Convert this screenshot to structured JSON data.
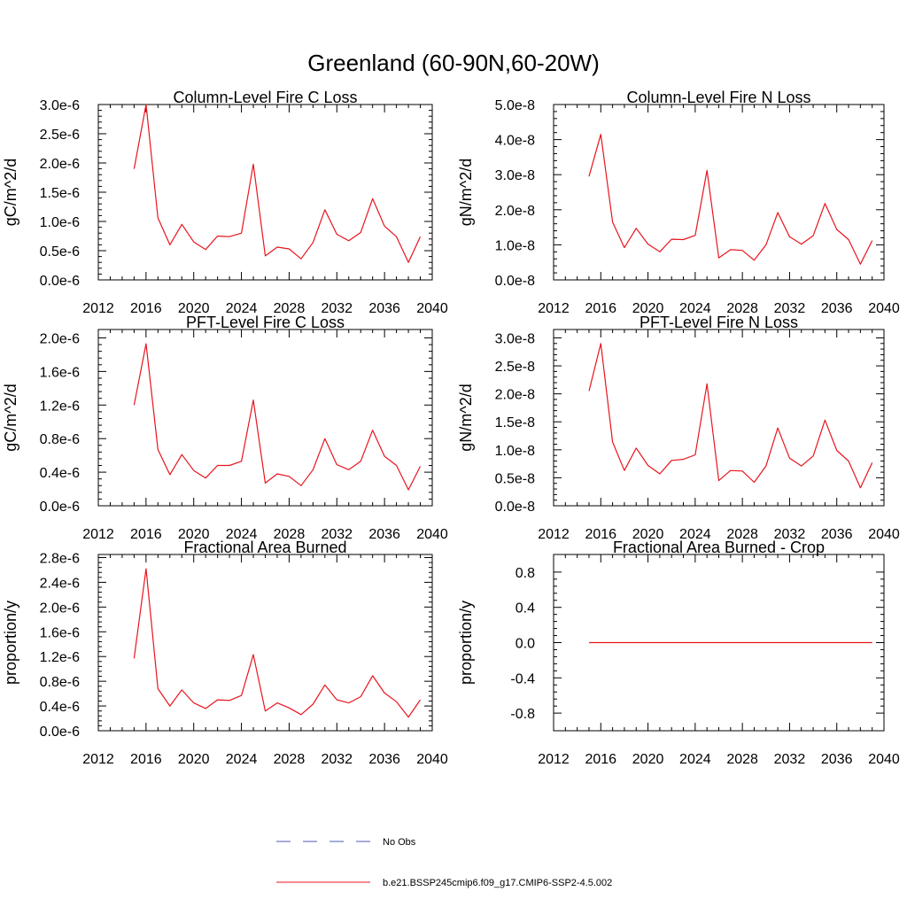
{
  "figure": {
    "title": "Greenland (60-90N,60-20W)"
  },
  "legend": [
    {
      "label": "No Obs",
      "color": "#4f5ab2",
      "style": "dashed"
    },
    {
      "label": "b.e21.BSSP245cmip6.f09_g17.CMIP6-SSP2-4.5.002",
      "color": "#e8141e",
      "style": "solid"
    }
  ],
  "chart_data": [
    {
      "type": "line",
      "title": "Column-Level Fire C Loss",
      "ylabel": "gC/m^2/d",
      "xlim": [
        2012,
        2040
      ],
      "xticks": [
        2012,
        2016,
        2020,
        2024,
        2028,
        2032,
        2036,
        2040
      ],
      "ylim": [
        0,
        3e-06
      ],
      "yticks": [
        0,
        5e-07,
        1e-06,
        1.5e-06,
        2e-06,
        2.5e-06,
        3e-06
      ],
      "ytick_labels": [
        "0.0e-6",
        "0.5e-6",
        "1.0e-6",
        "1.5e-6",
        "2.0e-6",
        "2.5e-6",
        "3.0e-6"
      ],
      "x": [
        2015,
        2016,
        2017,
        2018,
        2019,
        2020,
        2021,
        2022,
        2023,
        2024,
        2025,
        2026,
        2027,
        2028,
        2029,
        2030,
        2031,
        2032,
        2033,
        2034,
        2035,
        2036,
        2037,
        2038,
        2039
      ],
      "series": [
        {
          "name": "b.e21.BSSP245cmip6.f09_g17.CMIP6-SSP2-4.5.002",
          "color": "#e8141e",
          "values": [
            1.9e-06,
            3e-06,
            1.06e-06,
            6e-07,
            9.5e-07,
            6.5e-07,
            5.2e-07,
            7.5e-07,
            7.4e-07,
            8e-07,
            1.98e-06,
            4.1e-07,
            5.6e-07,
            5.3e-07,
            3.6e-07,
            6.4e-07,
            1.2e-06,
            7.8e-07,
            6.7e-07,
            8.1e-07,
            1.39e-06,
            9.2e-07,
            7.4e-07,
            3e-07,
            7.4e-07
          ]
        }
      ]
    },
    {
      "type": "line",
      "title": "Column-Level Fire N Loss",
      "ylabel": "gN/m^2/d",
      "xlim": [
        2012,
        2040
      ],
      "xticks": [
        2012,
        2016,
        2020,
        2024,
        2028,
        2032,
        2036,
        2040
      ],
      "ylim": [
        0,
        5e-08
      ],
      "yticks": [
        0,
        1e-08,
        2e-08,
        3e-08,
        4e-08,
        5e-08
      ],
      "ytick_labels": [
        "0.0e-8",
        "1.0e-8",
        "2.0e-8",
        "3.0e-8",
        "4.0e-8",
        "5.0e-8"
      ],
      "x": [
        2015,
        2016,
        2017,
        2018,
        2019,
        2020,
        2021,
        2022,
        2023,
        2024,
        2025,
        2026,
        2027,
        2028,
        2029,
        2030,
        2031,
        2032,
        2033,
        2034,
        2035,
        2036,
        2037,
        2038,
        2039
      ],
      "series": [
        {
          "name": "b.e21.BSSP245cmip6.f09_g17.CMIP6-SSP2-4.5.002",
          "color": "#e8141e",
          "values": [
            2.95e-08,
            4.15e-08,
            1.65e-08,
            9.2e-09,
            1.47e-08,
            1.02e-08,
            8e-09,
            1.16e-08,
            1.15e-08,
            1.27e-08,
            3.12e-08,
            6.3e-09,
            8.6e-09,
            8.4e-09,
            5.6e-09,
            1e-08,
            1.92e-08,
            1.23e-08,
            1.02e-08,
            1.26e-08,
            2.18e-08,
            1.44e-08,
            1.15e-08,
            4.5e-09,
            1.12e-08
          ]
        }
      ]
    },
    {
      "type": "line",
      "title": "PFT-Level Fire C Loss",
      "ylabel": "gC/m^2/d",
      "xlim": [
        2012,
        2040
      ],
      "xticks": [
        2012,
        2016,
        2020,
        2024,
        2028,
        2032,
        2036,
        2040
      ],
      "ylim": [
        0,
        2.1e-06
      ],
      "yticks": [
        0,
        4e-07,
        8e-07,
        1.2e-06,
        1.6e-06,
        2e-06
      ],
      "ytick_labels": [
        "0.0e-6",
        "0.4e-6",
        "0.8e-6",
        "1.2e-6",
        "1.6e-6",
        "2.0e-6"
      ],
      "x": [
        2015,
        2016,
        2017,
        2018,
        2019,
        2020,
        2021,
        2022,
        2023,
        2024,
        2025,
        2026,
        2027,
        2028,
        2029,
        2030,
        2031,
        2032,
        2033,
        2034,
        2035,
        2036,
        2037,
        2038,
        2039
      ],
      "series": [
        {
          "name": "b.e21.BSSP245cmip6.f09_g17.CMIP6-SSP2-4.5.002",
          "color": "#e8141e",
          "values": [
            1.2e-06,
            1.93e-06,
            6.7e-07,
            3.7e-07,
            6.1e-07,
            4.2e-07,
            3.3e-07,
            4.8e-07,
            4.8e-07,
            5.3e-07,
            1.26e-06,
            2.7e-07,
            3.8e-07,
            3.5e-07,
            2.4e-07,
            4.3e-07,
            8e-07,
            4.9e-07,
            4.3e-07,
            5.3e-07,
            9e-07,
            5.9e-07,
            4.8e-07,
            1.9e-07,
            4.7e-07
          ]
        }
      ]
    },
    {
      "type": "line",
      "title": "PFT-Level Fire N Loss",
      "ylabel": "gN/m^2/d",
      "xlim": [
        2012,
        2040
      ],
      "xticks": [
        2012,
        2016,
        2020,
        2024,
        2028,
        2032,
        2036,
        2040
      ],
      "ylim": [
        0,
        3.15e-08
      ],
      "yticks": [
        0,
        5e-09,
        1e-08,
        1.5e-08,
        2e-08,
        2.5e-08,
        3e-08
      ],
      "ytick_labels": [
        "0.0e-8",
        "0.5e-8",
        "1.0e-8",
        "1.5e-8",
        "2.0e-8",
        "2.5e-8",
        "3.0e-8"
      ],
      "x": [
        2015,
        2016,
        2017,
        2018,
        2019,
        2020,
        2021,
        2022,
        2023,
        2024,
        2025,
        2026,
        2027,
        2028,
        2029,
        2030,
        2031,
        2032,
        2033,
        2034,
        2035,
        2036,
        2037,
        2038,
        2039
      ],
      "series": [
        {
          "name": "b.e21.BSSP245cmip6.f09_g17.CMIP6-SSP2-4.5.002",
          "color": "#e8141e",
          "values": [
            2.05e-08,
            2.9e-08,
            1.14e-08,
            6.3e-09,
            1.03e-08,
            7.2e-09,
            5.7e-09,
            8.1e-09,
            8.3e-09,
            9.1e-09,
            2.18e-08,
            4.5e-09,
            6.3e-09,
            6.2e-09,
            4.2e-09,
            7.1e-09,
            1.39e-08,
            8.5e-09,
            7.1e-09,
            8.9e-09,
            1.53e-08,
            9.9e-09,
            8e-09,
            3.2e-09,
            7.7e-09
          ]
        }
      ]
    },
    {
      "type": "line",
      "title": "Fractional Area Burned",
      "ylabel": "proportion/y",
      "xlim": [
        2012,
        2040
      ],
      "xticks": [
        2012,
        2016,
        2020,
        2024,
        2028,
        2032,
        2036,
        2040
      ],
      "ylim": [
        0,
        2.85e-06
      ],
      "yticks": [
        0,
        4e-07,
        8e-07,
        1.2e-06,
        1.6e-06,
        2e-06,
        2.4e-06,
        2.8e-06
      ],
      "ytick_labels": [
        "0.0e-6",
        "0.4e-6",
        "0.8e-6",
        "1.2e-6",
        "1.6e-6",
        "2.0e-6",
        "2.4e-6",
        "2.8e-6"
      ],
      "x": [
        2015,
        2016,
        2017,
        2018,
        2019,
        2020,
        2021,
        2022,
        2023,
        2024,
        2025,
        2026,
        2027,
        2028,
        2029,
        2030,
        2031,
        2032,
        2033,
        2034,
        2035,
        2036,
        2037,
        2038,
        2039
      ],
      "series": [
        {
          "name": "b.e21.BSSP245cmip6.f09_g17.CMIP6-SSP2-4.5.002",
          "color": "#e8141e",
          "values": [
            1.17e-06,
            2.62e-06,
            6.8e-07,
            4e-07,
            6.6e-07,
            4.5e-07,
            3.6e-07,
            5e-07,
            4.9e-07,
            5.7e-07,
            1.23e-06,
            3.2e-07,
            4.5e-07,
            3.7e-07,
            2.6e-07,
            4.3e-07,
            7.4e-07,
            5e-07,
            4.5e-07,
            5.5e-07,
            8.9e-07,
            6.1e-07,
            4.7e-07,
            2.2e-07,
            5e-07
          ]
        }
      ]
    },
    {
      "type": "line",
      "title": "Fractional Area Burned - Crop",
      "ylabel": "proportion/y",
      "xlim": [
        2012,
        2040
      ],
      "xticks": [
        2012,
        2016,
        2020,
        2024,
        2028,
        2032,
        2036,
        2040
      ],
      "ylim": [
        -1.0,
        1.0
      ],
      "yticks": [
        -0.8,
        -0.4,
        0,
        0.4,
        0.8
      ],
      "ytick_labels": [
        "-0.8",
        "-0.4",
        "0.0",
        "0.4",
        "0.8"
      ],
      "x": [
        2015,
        2016,
        2017,
        2018,
        2019,
        2020,
        2021,
        2022,
        2023,
        2024,
        2025,
        2026,
        2027,
        2028,
        2029,
        2030,
        2031,
        2032,
        2033,
        2034,
        2035,
        2036,
        2037,
        2038,
        2039
      ],
      "series": [
        {
          "name": "b.e21.BSSP245cmip6.f09_g17.CMIP6-SSP2-4.5.002",
          "color": "#e8141e",
          "values": [
            0,
            0,
            0,
            0,
            0,
            0,
            0,
            0,
            0,
            0,
            0,
            0,
            0,
            0,
            0,
            0,
            0,
            0,
            0,
            0,
            0,
            0,
            0,
            0,
            0
          ]
        }
      ]
    }
  ]
}
